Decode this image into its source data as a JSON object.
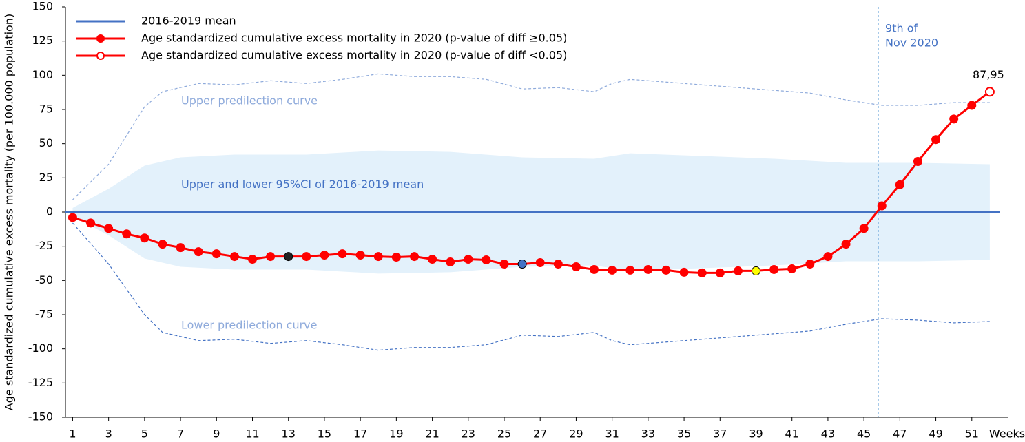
{
  "chart_data": {
    "type": "line",
    "y_label": "Age standardized cumulative excess mortality (per 100.000 population)",
    "x_label": "Weeks",
    "xlim": [
      0.6,
      53
    ],
    "xticks": [
      1,
      3,
      5,
      7,
      9,
      11,
      13,
      15,
      17,
      19,
      21,
      23,
      25,
      27,
      29,
      31,
      33,
      35,
      37,
      39,
      41,
      43,
      45,
      47,
      49,
      51
    ],
    "ylim": [
      -150,
      150
    ],
    "yticks": [
      -150,
      -125,
      -100,
      -75,
      -50,
      -25,
      0,
      25,
      50,
      75,
      100,
      125,
      150
    ],
    "legend": "upper left",
    "x": [
      1,
      2,
      3,
      4,
      5,
      6,
      7,
      8,
      9,
      10,
      11,
      12,
      13,
      14,
      15,
      16,
      17,
      18,
      19,
      20,
      21,
      22,
      23,
      24,
      25,
      26,
      27,
      28,
      29,
      30,
      31,
      32,
      33,
      34,
      35,
      36,
      37,
      38,
      39,
      40,
      41,
      42,
      43,
      44,
      45,
      46,
      47,
      48,
      49,
      50,
      51,
      52
    ],
    "mean": {
      "name": "2016-2019 mean",
      "color": "#4472c4",
      "value": 0
    },
    "series": [
      {
        "name": "Age standardized cumulative excess mortality in 2020 (p-value of diff ≥0.05)",
        "color": "#ff0000",
        "values": [
          -4,
          -8,
          -12,
          -16,
          -19,
          -23.5,
          -26,
          -29,
          -30.5,
          -32.5,
          -34.5,
          -32.5,
          -32.5,
          -32.5,
          -31.5,
          -30.5,
          -31.5,
          -32.5,
          -33,
          -32.5,
          -34.5,
          -36.5,
          -34.5,
          -35,
          -38,
          -38,
          -37,
          -38,
          -40,
          -42,
          -42.5,
          -42.5,
          -42,
          -42.5,
          -44,
          -44.5,
          -44.5,
          -43,
          -43,
          -42,
          -41.5,
          -38,
          -32.5,
          -23.5,
          -12,
          4.5,
          20,
          37,
          53,
          68,
          78,
          null
        ]
      },
      {
        "name": "Age standardized cumulative excess mortality in 2020 (p-value of diff <0.05)",
        "color": "#ff0000",
        "values": [
          null,
          null,
          null,
          null,
          null,
          null,
          null,
          null,
          null,
          null,
          null,
          null,
          null,
          null,
          null,
          null,
          null,
          null,
          null,
          null,
          null,
          null,
          null,
          null,
          null,
          null,
          null,
          null,
          null,
          null,
          null,
          null,
          null,
          null,
          null,
          null,
          null,
          null,
          null,
          null,
          null,
          null,
          null,
          null,
          null,
          null,
          null,
          null,
          null,
          null,
          null,
          87.95
        ],
        "value_labels": [
          null,
          null,
          null,
          null,
          null,
          null,
          null,
          null,
          null,
          null,
          null,
          null,
          null,
          null,
          null,
          null,
          null,
          null,
          null,
          null,
          null,
          null,
          null,
          null,
          null,
          null,
          null,
          null,
          null,
          null,
          null,
          null,
          null,
          null,
          null,
          null,
          null,
          null,
          null,
          null,
          null,
          null,
          null,
          null,
          null,
          null,
          null,
          null,
          null,
          null,
          null,
          "87,95"
        ]
      }
    ],
    "highlight_points": [
      {
        "x": 13,
        "color": "#222222"
      },
      {
        "x": 26,
        "color": "#4472c4"
      },
      {
        "x": 39,
        "color": "#ffff00"
      }
    ],
    "ci_band": {
      "label": "Upper and lower 95%CI of 2016-2019 mean",
      "color": "#e3f1fb",
      "x": [
        1,
        3,
        5,
        7,
        10,
        14,
        18,
        22,
        26,
        30,
        32,
        36,
        40,
        44,
        48,
        52
      ],
      "upper": [
        3,
        17,
        34,
        40,
        42,
        42,
        45,
        44,
        40,
        39,
        43,
        41,
        39,
        36,
        36,
        35
      ],
      "lower": [
        -3,
        -17,
        -34,
        -40,
        -42,
        -42,
        -45,
        -44,
        -40,
        -39,
        -43,
        -41,
        -39,
        -36,
        -36,
        -35
      ]
    },
    "prediction": {
      "upper_label": "Upper predilection curve",
      "lower_label": "Lower predilection curve",
      "upper_color": "#8eaadb",
      "lower_color": "#4472c4",
      "x": [
        1,
        3,
        5,
        6,
        8,
        10,
        12,
        14,
        16,
        18,
        20,
        22,
        24,
        26,
        28,
        30,
        31,
        32,
        34,
        36,
        38,
        40,
        42,
        44,
        45,
        46,
        48,
        50,
        52
      ],
      "upper": [
        9,
        35,
        77,
        88,
        94,
        93,
        96,
        94,
        97,
        101,
        99,
        99,
        97,
        90,
        91,
        88,
        94,
        97,
        95,
        93,
        91,
        89,
        87,
        82,
        80,
        78,
        78,
        80,
        80
      ],
      "lower": [
        -8,
        -38,
        -75,
        -88,
        -94,
        -93,
        -96,
        -94,
        -97,
        -101,
        -99,
        -99,
        -97,
        -90,
        -91,
        -88,
        -94,
        -97,
        -95,
        -93,
        -91,
        -89,
        -87,
        -82,
        -80,
        -78,
        -79,
        -81,
        -80
      ]
    },
    "vline": {
      "x": 45.8,
      "label": [
        "9th of",
        "Nov 2020"
      ],
      "color": "#5b9bd5"
    }
  }
}
